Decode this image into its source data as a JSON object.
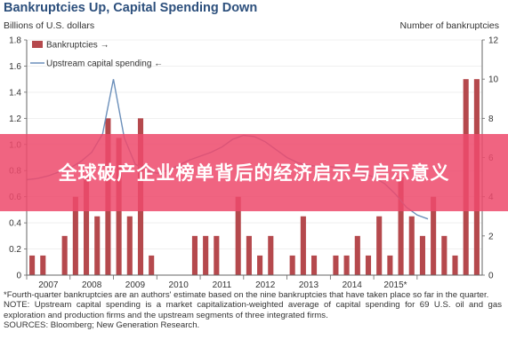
{
  "title": "Bankruptcies Up, Capital Spending Down",
  "y_left_unit": "Billions of U.S. dollars",
  "y_right_unit": "Number of bankruptcies",
  "notes": [
    "*Fourth-quarter bankruptcies are an authors' estimate based on the nine bankruptcies that have taken place so far in the quarter.",
    "NOTE: Upstream capital spending is a market capitalization-weighted average of capital spending for 69 U.S. oil and gas exploration and production firms and the upstream segments of three integrated firms.",
    "SOURCES: Bloomberg; New Generation Research."
  ],
  "banner": "全球破产企业榜单背后的经济启示与启示意义",
  "colors": {
    "bars": "#b5494d",
    "line": "#6b8fba",
    "title": "#2c4f7c",
    "banner": "#ee4a6c"
  },
  "chart_data": {
    "type": "bar",
    "title": "Bankruptcies Up, Capital Spending Down",
    "x_labels": [
      "2007",
      "2008",
      "2009",
      "2010",
      "2011",
      "2012",
      "2013",
      "2014",
      "2015*"
    ],
    "left_axis": {
      "label": "Billions of U.S. dollars",
      "min": 0,
      "max": 1.8,
      "ticks": [
        "0",
        "0.2",
        "0.4",
        "0.6",
        "0.8",
        "1.0",
        "1.2",
        "1.4",
        "1.6",
        "1.8"
      ]
    },
    "right_axis": {
      "label": "Number of bankruptcies",
      "min": 0,
      "max": 12,
      "ticks": [
        "0",
        "2",
        "4",
        "6",
        "8",
        "10",
        "12"
      ]
    },
    "legend": {
      "position": "top-left",
      "entries": [
        {
          "label": "Bankruptcies →",
          "kind": "bar"
        },
        {
          "label": "Upstream capital spending ←",
          "kind": "line"
        }
      ]
    },
    "bankruptcies": {
      "name": "Bankruptcies",
      "axis": "right",
      "values": [
        1,
        1,
        0,
        2,
        4,
        5,
        3,
        8,
        7,
        3,
        8,
        1,
        0,
        0,
        0,
        2,
        2,
        2,
        0,
        4,
        2,
        1,
        2,
        0,
        1,
        3,
        1,
        0,
        1,
        1,
        2,
        1,
        3,
        1,
        5,
        3,
        2,
        4,
        2,
        1,
        10,
        10
      ]
    },
    "capital_spending": {
      "name": "Upstream capital spending",
      "axis": "left",
      "points": [
        {
          "t": 0.0,
          "v": 0.73
        },
        {
          "t": 0.5,
          "v": 0.74
        },
        {
          "t": 1.0,
          "v": 0.76
        },
        {
          "t": 1.5,
          "v": 0.79
        },
        {
          "t": 2.0,
          "v": 0.82
        },
        {
          "t": 2.5,
          "v": 0.87
        },
        {
          "t": 3.0,
          "v": 0.94
        },
        {
          "t": 3.5,
          "v": 1.08
        },
        {
          "t": 4.0,
          "v": 1.5
        },
        {
          "t": 4.5,
          "v": 1.05
        },
        {
          "t": 5.0,
          "v": 0.85
        },
        {
          "t": 5.5,
          "v": 0.8
        },
        {
          "t": 6.0,
          "v": 0.78
        },
        {
          "t": 6.5,
          "v": 0.8
        },
        {
          "t": 7.0,
          "v": 0.84
        },
        {
          "t": 7.5,
          "v": 0.88
        },
        {
          "t": 8.0,
          "v": 0.91
        },
        {
          "t": 8.5,
          "v": 0.94
        },
        {
          "t": 9.0,
          "v": 0.98
        },
        {
          "t": 9.5,
          "v": 1.04
        },
        {
          "t": 10.0,
          "v": 1.07
        },
        {
          "t": 10.5,
          "v": 1.06
        },
        {
          "t": 11.0,
          "v": 1.02
        },
        {
          "t": 11.5,
          "v": 0.96
        },
        {
          "t": 12.0,
          "v": 0.9
        },
        {
          "t": 12.5,
          "v": 0.86
        },
        {
          "t": 13.0,
          "v": 0.84
        },
        {
          "t": 13.5,
          "v": 0.83
        },
        {
          "t": 14.0,
          "v": 0.83
        },
        {
          "t": 14.5,
          "v": 0.82
        },
        {
          "t": 15.0,
          "v": 0.8
        },
        {
          "t": 15.5,
          "v": 0.78
        },
        {
          "t": 16.0,
          "v": 0.75
        },
        {
          "t": 16.5,
          "v": 0.7
        },
        {
          "t": 17.0,
          "v": 0.62
        },
        {
          "t": 17.5,
          "v": 0.52
        },
        {
          "t": 18.0,
          "v": 0.46
        },
        {
          "t": 18.5,
          "v": 0.43
        }
      ]
    }
  }
}
